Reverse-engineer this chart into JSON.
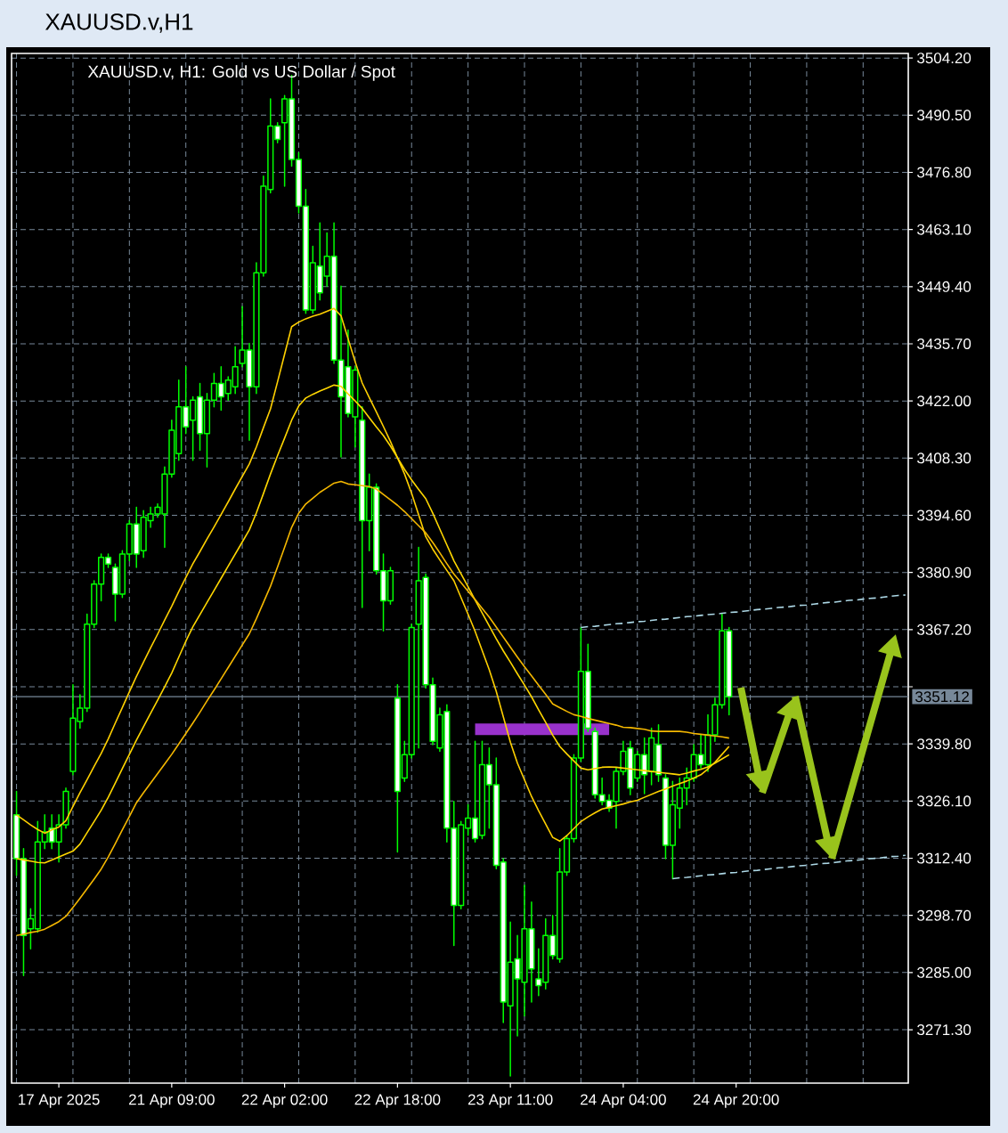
{
  "chart_data": {
    "type": "candlestick",
    "title": "XAUUSD.v,H1",
    "subtitle": "XAUUSD.v, H1: Gold vs US Dollar / Spot",
    "categories": [
      null,
      null,
      null,
      null,
      null,
      null,
      "17 Apr 2025",
      null,
      null,
      null,
      null,
      null,
      null,
      null,
      null,
      null,
      null,
      null,
      null,
      null,
      null,
      null,
      "21 Apr 09:00",
      null,
      null,
      null,
      null,
      null,
      null,
      null,
      null,
      null,
      null,
      null,
      null,
      null,
      null,
      null,
      "22 Apr 02:00",
      null,
      null,
      null,
      null,
      null,
      null,
      null,
      null,
      null,
      null,
      null,
      null,
      null,
      null,
      null,
      "22 Apr 18:00",
      null,
      null,
      null,
      null,
      null,
      null,
      null,
      null,
      null,
      null,
      null,
      null,
      null,
      null,
      null,
      "23 Apr 11:00",
      null,
      null,
      null,
      null,
      null,
      null,
      null,
      null,
      null,
      null,
      null,
      null,
      null,
      null,
      null,
      "24 Apr 04:00",
      null,
      null,
      null,
      null,
      null,
      null,
      null,
      null,
      null,
      null,
      null,
      null,
      null,
      null,
      null,
      "24 Apr 20:00",
      null,
      null,
      null,
      null,
      null,
      null,
      null,
      null,
      null,
      null,
      null,
      null,
      null,
      null,
      null,
      null,
      null,
      null,
      null,
      null,
      null,
      null,
      null,
      null
    ],
    "ohlc": [
      [
        3322.8,
        3328.4,
        3308.3,
        3312.3
      ],
      [
        3312.3,
        3314.7,
        3284.3,
        3293.9
      ],
      [
        3295.5,
        3300.3,
        3290.7,
        3297.9
      ],
      [
        3295.5,
        3321.2,
        3294.7,
        3316.3
      ],
      [
        3316.3,
        3322.8,
        3314.7,
        3318.7
      ],
      [
        3319.6,
        3322.8,
        3314.7,
        3316.3
      ],
      [
        3316.3,
        3322.8,
        3311.5,
        3320.4
      ],
      [
        3320.4,
        3329.2,
        3319.6,
        3328.4
      ],
      [
        3333.2,
        3354.0,
        3332.4,
        3346.0
      ],
      [
        3345.2,
        3351.6,
        3343.6,
        3348.4
      ],
      [
        3348.4,
        3370.9,
        3347.6,
        3368.5
      ],
      [
        3368.5,
        3378.9,
        3367.7,
        3378.1
      ],
      [
        3378.1,
        3385.3,
        3374.1,
        3384.5
      ],
      [
        3384.5,
        3385.3,
        3382.1,
        3382.9
      ],
      [
        3382.1,
        3382.9,
        3369.3,
        3375.7
      ],
      [
        3375.7,
        3386.1,
        3374.9,
        3385.3
      ],
      [
        3385.3,
        3393.3,
        3383.7,
        3392.5
      ],
      [
        3392.5,
        3396.5,
        3382.1,
        3385.3
      ],
      [
        3386.1,
        3395.7,
        3384.5,
        3394.1
      ],
      [
        3393.3,
        3396.5,
        3391.7,
        3394.9
      ],
      [
        3394.9,
        3397.3,
        3394.1,
        3396.5
      ],
      [
        3394.9,
        3406.2,
        3386.9,
        3404.5
      ],
      [
        3404.5,
        3417.4,
        3403.7,
        3415.0
      ],
      [
        3409.4,
        3427.0,
        3407.8,
        3420.6
      ],
      [
        3420.6,
        3430.2,
        3414.2,
        3415.8
      ],
      [
        3417.4,
        3423.0,
        3407.8,
        3422.2
      ],
      [
        3423.0,
        3426.2,
        3410.2,
        3414.2
      ],
      [
        3414.2,
        3423.8,
        3406.2,
        3422.2
      ],
      [
        3422.2,
        3428.6,
        3420.6,
        3426.2
      ],
      [
        3426.2,
        3430.2,
        3419.8,
        3423.0
      ],
      [
        3423.8,
        3427.8,
        3422.2,
        3427.0
      ],
      [
        3425.4,
        3435.0,
        3423.8,
        3430.2
      ],
      [
        3431.0,
        3444.6,
        3430.2,
        3434.2
      ],
      [
        3434.2,
        3435.8,
        3412.6,
        3425.4
      ],
      [
        3425.4,
        3455.1,
        3423.8,
        3452.7
      ],
      [
        3452.7,
        3475.9,
        3451.9,
        3473.5
      ],
      [
        3472.7,
        3494.4,
        3471.9,
        3487.9
      ],
      [
        3487.9,
        3488.7,
        3483.9,
        3484.7
      ],
      [
        3488.7,
        3495.2,
        3473.5,
        3494.4
      ],
      [
        3494.4,
        3500.0,
        3478.3,
        3479.9
      ],
      [
        3479.9,
        3481.5,
        3467.1,
        3468.7
      ],
      [
        3468.7,
        3472.7,
        3443.0,
        3443.8
      ],
      [
        3443.8,
        3459.1,
        3443.0,
        3455.1
      ],
      [
        3454.3,
        3464.7,
        3446.2,
        3447.9
      ],
      [
        3451.9,
        3462.3,
        3449.5,
        3456.7
      ],
      [
        3456.7,
        3464.7,
        3431.0,
        3431.8
      ],
      [
        3431.8,
        3449.5,
        3408.6,
        3423.0
      ],
      [
        3430.2,
        3439.0,
        3418.2,
        3419.0
      ],
      [
        3418.2,
        3430.2,
        3411.0,
        3429.4
      ],
      [
        3417.4,
        3420.6,
        3372.5,
        3393.3
      ],
      [
        3393.3,
        3404.5,
        3386.1,
        3401.3
      ],
      [
        3401.3,
        3402.1,
        3380.5,
        3381.3
      ],
      [
        3381.3,
        3385.3,
        3366.9,
        3374.1
      ],
      [
        3374.1,
        3382.1,
        3373.3,
        3381.3
      ],
      [
        3350.8,
        3354.0,
        3313.9,
        3328.4
      ],
      [
        3331.6,
        3340.4,
        3330.8,
        3337.2
      ],
      [
        3337.2,
        3368.5,
        3336.4,
        3367.7
      ],
      [
        3368.5,
        3386.9,
        3338.8,
        3378.9
      ],
      [
        3379.7,
        3380.5,
        3353.2,
        3354.0
      ],
      [
        3354.0,
        3355.6,
        3339.6,
        3340.4
      ],
      [
        3338.8,
        3348.4,
        3338.0,
        3346.8
      ],
      [
        3347.6,
        3349.2,
        3316.3,
        3319.6
      ],
      [
        3319.6,
        3326.0,
        3291.5,
        3301.1
      ],
      [
        3301.1,
        3321.2,
        3300.3,
        3320.4
      ],
      [
        3319.6,
        3325.2,
        3317.9,
        3322.0
      ],
      [
        3322.0,
        3340.4,
        3316.3,
        3317.1
      ],
      [
        3317.9,
        3340.4,
        3317.1,
        3334.8
      ],
      [
        3334.8,
        3338.8,
        3319.6,
        3330.0
      ],
      [
        3330.0,
        3336.4,
        3309.9,
        3310.7
      ],
      [
        3311.5,
        3312.3,
        3273.0,
        3277.9
      ],
      [
        3277.0,
        3297.1,
        3260.2,
        3287.5
      ],
      [
        3288.3,
        3293.9,
        3269.8,
        3283.5
      ],
      [
        3282.7,
        3305.9,
        3274.6,
        3295.5
      ],
      [
        3295.5,
        3301.9,
        3277.9,
        3285.9
      ],
      [
        3283.5,
        3290.7,
        3279.5,
        3281.9
      ],
      [
        3282.7,
        3297.9,
        3281.1,
        3293.9
      ],
      [
        3293.9,
        3298.7,
        3288.3,
        3289.1
      ],
      [
        3288.3,
        3314.7,
        3287.5,
        3309.1
      ],
      [
        3309.1,
        3317.9,
        3308.3,
        3317.1
      ],
      [
        3317.1,
        3337.2,
        3316.3,
        3336.4
      ],
      [
        3336.4,
        3367.7,
        3335.6,
        3357.2
      ],
      [
        3357.2,
        3363.7,
        3342.8,
        3343.6
      ],
      [
        3342.8,
        3343.6,
        3326.8,
        3327.6
      ],
      [
        3327.6,
        3331.6,
        3325.2,
        3326.0
      ],
      [
        3326.3,
        3327.6,
        3323.6,
        3324.4
      ],
      [
        3326.0,
        3334.0,
        3319.6,
        3333.2
      ],
      [
        3333.2,
        3340.4,
        3332.4,
        3338.0
      ],
      [
        3338.8,
        3340.4,
        3327.6,
        3329.2
      ],
      [
        3331.6,
        3338.0,
        3330.8,
        3337.2
      ],
      [
        3337.2,
        3341.2,
        3327.9,
        3332.4
      ],
      [
        3333.2,
        3343.6,
        3330.0,
        3341.2
      ],
      [
        3339.6,
        3344.4,
        3330.8,
        3332.4
      ],
      [
        3331.6,
        3332.4,
        3312.3,
        3315.5
      ],
      [
        3315.5,
        3330.8,
        3307.5,
        3325.2
      ],
      [
        3324.4,
        3331.6,
        3319.6,
        3329.2
      ],
      [
        3329.2,
        3334.0,
        3325.2,
        3331.6
      ],
      [
        3331.6,
        3339.6,
        3330.8,
        3337.2
      ],
      [
        3337.2,
        3342.0,
        3334.0,
        3334.8
      ],
      [
        3334.8,
        3346.8,
        3333.2,
        3342.0
      ],
      [
        3342.0,
        3350.8,
        3340.4,
        3349.2
      ],
      [
        3349.2,
        3370.9,
        3348.4,
        3366.9
      ],
      [
        3366.9,
        3367.7,
        3346.8,
        3351.12
      ],
      null,
      null,
      null,
      null,
      null,
      null,
      null,
      null,
      null,
      null,
      null,
      null,
      null,
      null,
      null,
      null,
      null,
      null,
      null,
      null,
      null,
      null,
      null,
      null,
      null
    ],
    "color": "#00ff00",
    "colors": [
      "#ffffff",
      "#ffffff",
      "#000000",
      "#000000",
      "#000000",
      "#ffffff",
      "#000000",
      "#000000",
      "#000000",
      "#000000",
      "#000000",
      "#000000",
      "#000000",
      "#ffffff",
      "#ffffff",
      "#000000",
      "#000000",
      "#ffffff",
      "#000000",
      "#000000",
      "#000000",
      "#000000",
      "#000000",
      "#000000",
      "#ffffff",
      "#000000",
      "#ffffff",
      "#000000",
      "#000000",
      "#ffffff",
      "#000000",
      "#000000",
      "#000000",
      "#ffffff",
      "#000000",
      "#000000",
      "#000000",
      "#ffffff",
      "#000000",
      "#ffffff",
      "#ffffff",
      "#ffffff",
      "#000000",
      "#ffffff",
      "#000000",
      "#ffffff",
      "#ffffff",
      "#ffffff",
      "#000000",
      "#ffffff",
      "#000000",
      "#ffffff",
      "#ffffff",
      "#000000",
      "#ffffff",
      "#000000",
      "#000000",
      "#000000",
      "#ffffff",
      "#ffffff",
      "#000000",
      "#ffffff",
      "#ffffff",
      "#000000",
      "#000000",
      "#ffffff",
      "#000000",
      "#ffffff",
      "#ffffff",
      "#ffffff",
      "#000000",
      "#ffffff",
      "#000000",
      "#ffffff",
      "#ffffff",
      "#000000",
      "#ffffff",
      "#000000",
      "#000000",
      "#000000",
      "#000000",
      "#ffffff",
      "#ffffff",
      "#ffffff",
      "#ffffff",
      "#000000",
      "#000000",
      "#ffffff",
      "#000000",
      "#ffffff",
      "#000000",
      "#ffffff",
      "#ffffff",
      "#000000",
      "#000000",
      "#000000",
      "#000000",
      "#ffffff",
      "#000000",
      "#000000",
      "#000000",
      "#ffffff",
      null,
      null,
      null,
      null,
      null,
      null,
      null,
      null,
      null,
      null,
      null,
      null,
      null,
      null,
      null,
      null,
      null,
      null,
      null,
      null,
      null,
      null,
      null,
      null,
      null
    ],
    "series": [
      {
        "type": "line",
        "color": "#ffd000",
        "values": [
          3322.8,
          3321.6,
          3320.4,
          3319.3,
          3318.4,
          3319.2,
          3319.9,
          3321.4,
          3324.8,
          3328.1,
          3331.2,
          3334.4,
          3337.5,
          3341.0,
          3344.8,
          3348.5,
          3352.3,
          3356.0,
          3359.4,
          3362.8,
          3366.1,
          3369.5,
          3372.8,
          3376.3,
          3379.7,
          3383.0,
          3385.9,
          3388.9,
          3391.8,
          3394.8,
          3397.8,
          3400.9,
          3403.9,
          3406.9,
          3411.0,
          3415.6,
          3420.1,
          3426.6,
          3433.2,
          3439.8,
          3440.9,
          3441.7,
          3442.3,
          3442.8,
          3443.5,
          3444.2,
          3442.4,
          3436.9,
          3431.4,
          3426.3,
          3422.8,
          3419.4,
          3415.9,
          3412.3,
          3408.4,
          3404.5,
          3399.9,
          3394.7,
          3389.5,
          3386.5,
          3383.9,
          3381.4,
          3378.9,
          3374.9,
          3370.9,
          3366.8,
          3362.2,
          3357.6,
          3352.4,
          3346.3,
          3340.2,
          3335.2,
          3331.2,
          3327.2,
          3323.8,
          3320.6,
          3317.4,
          3316.5,
          3317.8,
          3319.5,
          3321.2,
          3322.3,
          3323.3,
          3324.2,
          3324.6,
          3325.0,
          3325.4,
          3325.9,
          3326.3,
          3327.0,
          3327.7,
          3328.4,
          3329.0,
          3329.7,
          3330.3,
          3330.9,
          3331.6,
          3332.4,
          3333.8,
          3335.4,
          3337.3,
          3339.2,
          null,
          null,
          null,
          null,
          null,
          null,
          null,
          null,
          null,
          null,
          null,
          null,
          null,
          null,
          null,
          null,
          null,
          null,
          null,
          null,
          null,
          null,
          null,
          null,
          null
        ]
      },
      {
        "type": "line",
        "color": "#ffd700",
        "values": [
          3312.3,
          3312.0,
          3311.7,
          3311.4,
          3311.3,
          3312.0,
          3312.7,
          3313.4,
          3314.1,
          3315.8,
          3318.5,
          3321.2,
          3323.9,
          3327.0,
          3330.4,
          3333.9,
          3337.3,
          3340.7,
          3343.9,
          3347.1,
          3350.3,
          3353.5,
          3356.8,
          3360.6,
          3364.4,
          3367.9,
          3370.8,
          3373.7,
          3376.6,
          3379.5,
          3382.4,
          3385.3,
          3388.2,
          3391.1,
          3395.2,
          3399.8,
          3404.5,
          3408.9,
          3413.1,
          3417.4,
          3420.8,
          3422.7,
          3423.6,
          3424.4,
          3425.1,
          3425.8,
          3425.5,
          3423.7,
          3422.0,
          3420.2,
          3418.0,
          3415.8,
          3413.7,
          3411.2,
          3408.4,
          3405.6,
          3403.1,
          3400.8,
          3398.6,
          3395.1,
          3391.3,
          3387.5,
          3383.7,
          3380.6,
          3377.5,
          3374.3,
          3371.2,
          3368.1,
          3365.0,
          3362.1,
          3359.4,
          3356.6,
          3353.9,
          3351.1,
          3348.0,
          3345.0,
          3341.9,
          3339.2,
          3337.4,
          3335.7,
          3334.0,
          3333.6,
          3333.9,
          3334.2,
          3334.3,
          3334.2,
          3334.0,
          3333.8,
          3333.6,
          3333.4,
          3333.2,
          3333.0,
          3332.8,
          3332.6,
          3332.4,
          3332.8,
          3333.3,
          3333.7,
          3334.3,
          3335.2,
          3336.2,
          3337.2,
          null,
          null,
          null,
          null,
          null,
          null,
          null,
          null,
          null,
          null,
          null,
          null,
          null,
          null,
          null,
          null,
          null,
          null,
          null,
          null,
          null,
          null,
          null,
          null,
          null
        ]
      },
      {
        "type": "line",
        "color": "#f5b800",
        "values": [
          3293.9,
          3294.2,
          3294.6,
          3294.9,
          3295.4,
          3296.3,
          3297.2,
          3298.5,
          3300.6,
          3302.8,
          3305.1,
          3307.4,
          3309.8,
          3312.7,
          3315.9,
          3319.2,
          3322.4,
          3325.7,
          3328.1,
          3330.4,
          3332.7,
          3335.0,
          3337.3,
          3339.8,
          3342.3,
          3344.8,
          3347.4,
          3350.1,
          3352.7,
          3355.4,
          3358.1,
          3360.8,
          3363.5,
          3366.2,
          3369.8,
          3373.7,
          3377.6,
          3382.2,
          3386.9,
          3391.7,
          3395.1,
          3397.3,
          3398.7,
          3400.1,
          3401.2,
          3402.3,
          3402.7,
          3402.1,
          3401.9,
          3401.7,
          3401.5,
          3400.9,
          3399.6,
          3398.3,
          3397.0,
          3395.5,
          3393.8,
          3392.1,
          3390.4,
          3388.1,
          3385.6,
          3383.0,
          3380.5,
          3378.5,
          3376.4,
          3374.4,
          3372.3,
          3370.2,
          3367.8,
          3365.4,
          3363.0,
          3360.6,
          3358.3,
          3356.1,
          3353.9,
          3351.7,
          3349.4,
          3348.5,
          3347.6,
          3346.8,
          3346.4,
          3345.9,
          3345.5,
          3345.1,
          3344.7,
          3344.3,
          3343.8,
          3343.7,
          3343.5,
          3343.3,
          3342.9,
          3342.8,
          3342.8,
          3342.8,
          3342.8,
          3342.6,
          3342.3,
          3342.1,
          3341.9,
          3341.7,
          3341.5,
          3341.2,
          null,
          null,
          null,
          null,
          null,
          null,
          null,
          null,
          null,
          null,
          null,
          null,
          null,
          null,
          null,
          null,
          null,
          null,
          null,
          null,
          null,
          null,
          null,
          null,
          null
        ]
      },
      {
        "type": "line",
        "color": "#9932cc",
        "values": [
          null,
          null,
          null,
          null,
          null,
          null,
          null,
          null,
          null,
          null,
          null,
          null,
          null,
          null,
          null,
          null,
          null,
          null,
          null,
          null,
          null,
          null,
          null,
          null,
          null,
          null,
          null,
          null,
          null,
          null,
          null,
          null,
          null,
          null,
          null,
          null,
          null,
          null,
          null,
          null,
          null,
          null,
          null,
          null,
          null,
          null,
          null,
          null,
          null,
          null,
          null,
          null,
          null,
          null,
          null,
          null,
          null,
          null,
          null,
          null,
          null,
          null,
          null,
          null,
          null,
          3343.3,
          3343.3,
          3343.3,
          3343.3,
          3343.3,
          3343.3,
          3343.3,
          3343.3,
          3343.3,
          3343.3,
          3343.3,
          3343.3,
          3343.3,
          3343.3,
          3343.3,
          3343.3,
          3343.3,
          3343.3,
          3343.3,
          3343.3,
          null,
          null,
          null,
          null,
          null,
          null,
          null,
          null,
          null,
          null,
          null,
          null,
          null,
          null,
          null,
          null,
          null,
          null,
          null,
          null,
          null,
          null,
          null,
          null,
          null,
          null,
          null,
          null,
          null,
          null,
          null,
          null,
          null,
          null,
          null,
          null,
          null,
          null,
          null,
          null,
          null,
          null
        ]
      },
      {
        "type": "line",
        "color": "#add8e6",
        "line_style": "dashed",
        "values": [
          null,
          null,
          null,
          null,
          null,
          null,
          null,
          null,
          null,
          null,
          null,
          null,
          null,
          null,
          null,
          null,
          null,
          null,
          null,
          null,
          null,
          null,
          null,
          null,
          null,
          null,
          null,
          null,
          null,
          null,
          null,
          null,
          null,
          null,
          null,
          null,
          null,
          null,
          null,
          null,
          null,
          null,
          null,
          null,
          null,
          null,
          null,
          null,
          null,
          null,
          null,
          null,
          null,
          null,
          null,
          null,
          null,
          null,
          null,
          null,
          null,
          null,
          null,
          null,
          null,
          null,
          null,
          null,
          null,
          null,
          null,
          null,
          null,
          null,
          null,
          null,
          null,
          null,
          null,
          null,
          3367.7,
          3367.9,
          3368.0,
          3368.2,
          3368.4,
          3368.6,
          3368.7,
          3368.9,
          3369.1,
          3369.2,
          3369.4,
          3369.6,
          3369.7,
          3369.9,
          3370.1,
          3370.3,
          3370.4,
          3370.6,
          3370.8,
          3370.9,
          3371.1,
          3371.3,
          3371.4,
          3371.6,
          3371.8,
          3372.0,
          3372.1,
          3372.3,
          3372.5,
          3372.6,
          3372.8,
          3373.0,
          3373.1,
          3373.3,
          3373.5,
          3373.7,
          3373.8,
          3374.0,
          3374.2,
          3374.3,
          3374.5,
          3374.7,
          3374.8,
          3375.0,
          3375.2,
          3375.4,
          3375.5
        ]
      },
      {
        "type": "line",
        "color": "#add8e6",
        "line_style": "dashed",
        "values": [
          null,
          null,
          null,
          null,
          null,
          null,
          null,
          null,
          null,
          null,
          null,
          null,
          null,
          null,
          null,
          null,
          null,
          null,
          null,
          null,
          null,
          null,
          null,
          null,
          null,
          null,
          null,
          null,
          null,
          null,
          null,
          null,
          null,
          null,
          null,
          null,
          null,
          null,
          null,
          null,
          null,
          null,
          null,
          null,
          null,
          null,
          null,
          null,
          null,
          null,
          null,
          null,
          null,
          null,
          null,
          null,
          null,
          null,
          null,
          null,
          null,
          null,
          null,
          null,
          null,
          null,
          null,
          null,
          null,
          null,
          null,
          null,
          null,
          null,
          null,
          null,
          null,
          null,
          null,
          null,
          null,
          null,
          null,
          null,
          null,
          null,
          null,
          null,
          null,
          null,
          null,
          null,
          null,
          3307.5,
          3307.7,
          3307.8,
          3308.0,
          3308.2,
          3308.4,
          3308.5,
          3308.7,
          3308.9,
          3309.0,
          3309.2,
          3309.4,
          3309.5,
          3309.7,
          3309.9,
          3310.1,
          3310.2,
          3310.4,
          3310.6,
          3310.7,
          3310.9,
          3311.1,
          3311.2,
          3311.4,
          3311.6,
          3311.8,
          3311.9,
          3312.1,
          3312.3,
          3312.4,
          3312.6,
          3312.8,
          3312.9,
          3313.1
        ]
      }
    ],
    "ylim": [
      3258.5,
      3505.3
    ],
    "yticks": [
      {
        "value": 3271.3,
        "label": "3271.30"
      },
      {
        "value": 3285.0,
        "label": "3285.00"
      },
      {
        "value": 3298.7,
        "label": "3298.70"
      },
      {
        "value": 3312.4,
        "label": "3312.40"
      },
      {
        "value": 3326.1,
        "label": "3326.10"
      },
      {
        "value": 3339.8,
        "label": "3339.80"
      },
      {
        "value": 3353.5,
        "label": null
      },
      {
        "value": 3367.2,
        "label": "3367.20"
      },
      {
        "value": 3380.9,
        "label": "3380.90"
      },
      {
        "value": 3394.6,
        "label": "3394.60"
      },
      {
        "value": 3408.3,
        "label": "3408.30"
      },
      {
        "value": 3422.0,
        "label": "3422.00"
      },
      {
        "value": 3435.7,
        "label": "3435.70"
      },
      {
        "value": 3449.4,
        "label": "3449.40"
      },
      {
        "value": 3463.1,
        "label": "3463.10"
      },
      {
        "value": 3476.8,
        "label": "3476.80"
      },
      {
        "value": 3490.5,
        "label": "3490.50"
      },
      {
        "value": 3504.2,
        "label": "3504.20"
      }
    ],
    "ref_lines": [
      {
        "axis": "y",
        "value": 3351.12,
        "label": "3351.12",
        "color": "#778899"
      }
    ],
    "grid": true
  }
}
